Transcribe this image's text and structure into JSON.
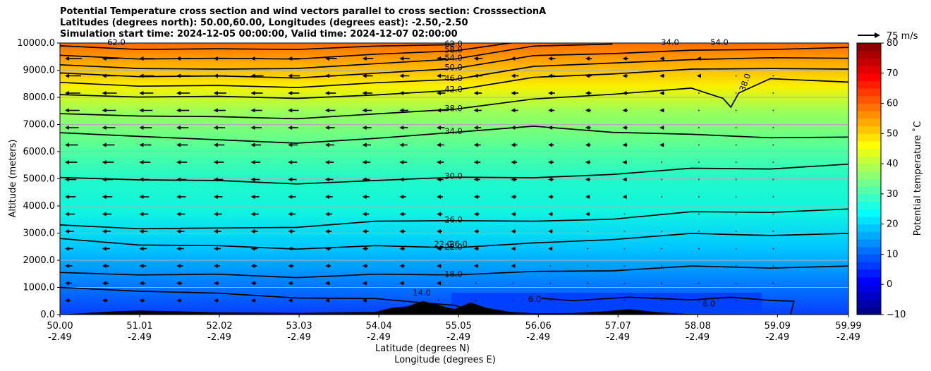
{
  "figure": {
    "title_lines": [
      "Potential Temperature cross section and wind vectors parallel to cross section: CrosssectionA",
      "Latitudes (degrees north): 50.00,60.00, Longitudes (degrees east): -2.50,-2.50",
      "Simulation start time: 2024-12-05 00:00:00, Valid time: 2024-12-07 02:00:00"
    ]
  },
  "chart_data": {
    "type": "contourf",
    "xlabel_lines": [
      "Latitude (degrees N)",
      "Longitude (degrees E)"
    ],
    "ylabel": "Altitude (meters)",
    "ylim": [
      0,
      10000
    ],
    "xlim": [
      50.0,
      59.99
    ],
    "grid": "horizontal",
    "y_ticks": [
      {
        "value": 0,
        "label": "0.0"
      },
      {
        "value": 1000,
        "label": "1000.0"
      },
      {
        "value": 2000,
        "label": "2000.0"
      },
      {
        "value": 3000,
        "label": "3000.0"
      },
      {
        "value": 4000,
        "label": "4000.0"
      },
      {
        "value": 5000,
        "label": "5000.0"
      },
      {
        "value": 6000,
        "label": "6000.0"
      },
      {
        "value": 7000,
        "label": "7000.0"
      },
      {
        "value": 8000,
        "label": "8000.0"
      },
      {
        "value": 9000,
        "label": "9000.0"
      },
      {
        "value": 10000,
        "label": "10000.0"
      }
    ],
    "x_ticks": [
      {
        "value": 50.0,
        "lat": "50.00",
        "lon": "-2.49"
      },
      {
        "value": 51.01,
        "lat": "51.01",
        "lon": "-2.49"
      },
      {
        "value": 52.02,
        "lat": "52.02",
        "lon": "-2.49"
      },
      {
        "value": 53.03,
        "lat": "53.03",
        "lon": "-2.49"
      },
      {
        "value": 54.04,
        "lat": "54.04",
        "lon": "-2.49"
      },
      {
        "value": 55.05,
        "lat": "55.05",
        "lon": "-2.49"
      },
      {
        "value": 56.06,
        "lat": "56.06",
        "lon": "-2.49"
      },
      {
        "value": 57.07,
        "lat": "57.07",
        "lon": "-2.49"
      },
      {
        "value": 58.08,
        "lat": "58.08",
        "lon": "-2.49"
      },
      {
        "value": 59.09,
        "lat": "59.09",
        "lon": "-2.49"
      },
      {
        "value": 59.99,
        "lat": "59.99",
        "lon": "-2.49"
      }
    ],
    "colorbar": {
      "label": "Potential temperature $^\\circ$C",
      "label_text": "Potential temperature ˚C",
      "range": [
        -10,
        80
      ],
      "ticks": [
        "80",
        "70",
        "60",
        "50",
        "40",
        "30",
        "20",
        "10",
        "0",
        "−10"
      ],
      "tick_values": [
        80,
        70,
        60,
        50,
        40,
        30,
        20,
        10,
        0,
        -10
      ],
      "colormap": "jet"
    },
    "wind_key": {
      "label": "75 m/s"
    },
    "contour_lines": [
      {
        "level": 6,
        "label": "6.0",
        "points": [
          [
            56.1,
            600
          ],
          [
            56.5,
            550
          ],
          [
            57.2,
            600
          ],
          [
            58.0,
            580
          ],
          [
            58.5,
            600
          ],
          [
            59.0,
            560
          ],
          [
            59.3,
            450
          ],
          [
            59.25,
            0
          ]
        ]
      },
      {
        "level": 14,
        "label": "14.0",
        "points": [
          [
            50.0,
            1000
          ],
          [
            51.0,
            900
          ],
          [
            52.0,
            750
          ],
          [
            53.0,
            650
          ],
          [
            54.0,
            550
          ],
          [
            54.5,
            500
          ],
          [
            55.0,
            300
          ],
          [
            55.3,
            100
          ],
          [
            55.6,
            0
          ]
        ]
      },
      {
        "level": 18,
        "label": "18.0",
        "points": [
          [
            50.0,
            1550
          ],
          [
            51.0,
            1500
          ],
          [
            52.0,
            1450
          ],
          [
            53.0,
            1400
          ],
          [
            54.0,
            1450
          ],
          [
            55.0,
            1500
          ],
          [
            56.0,
            1550
          ],
          [
            57.0,
            1650
          ],
          [
            58.0,
            1750
          ],
          [
            59.0,
            1750
          ],
          [
            59.99,
            1750
          ]
        ]
      },
      {
        "level": 22,
        "label": "22.0",
        "points": [
          [
            50.0,
            2800
          ],
          [
            51.0,
            2600
          ],
          [
            52.0,
            2500
          ],
          [
            53.0,
            2450
          ],
          [
            54.0,
            2500
          ],
          [
            55.0,
            2500
          ],
          [
            56.0,
            2600
          ],
          [
            57.0,
            2800
          ],
          [
            58.0,
            2950
          ],
          [
            59.0,
            2950
          ],
          [
            59.99,
            2950
          ]
        ]
      },
      {
        "level": 26,
        "label": "26.0",
        "points": [
          [
            50.0,
            3300
          ],
          [
            51.0,
            3200
          ],
          [
            52.0,
            3150
          ],
          [
            53.0,
            3250
          ],
          [
            54.0,
            3400
          ],
          [
            55.0,
            3500
          ],
          [
            56.0,
            3400
          ],
          [
            57.0,
            3550
          ],
          [
            58.0,
            3750
          ],
          [
            59.0,
            3800
          ],
          [
            59.99,
            3850
          ]
        ]
      },
      {
        "level": 30,
        "label": "30.0",
        "points": [
          [
            50.0,
            5050
          ],
          [
            51.0,
            5000
          ],
          [
            52.0,
            4900
          ],
          [
            53.0,
            4850
          ],
          [
            54.0,
            4900
          ],
          [
            55.0,
            5100
          ],
          [
            56.0,
            5000
          ],
          [
            57.0,
            5200
          ],
          [
            58.0,
            5350
          ],
          [
            59.0,
            5400
          ],
          [
            59.99,
            5500
          ]
        ]
      },
      {
        "level": 34,
        "label": "34.0",
        "points": [
          [
            50.0,
            6700
          ],
          [
            51.0,
            6600
          ],
          [
            52.0,
            6400
          ],
          [
            53.0,
            6350
          ],
          [
            54.0,
            6450
          ],
          [
            55.0,
            6750
          ],
          [
            56.0,
            6900
          ],
          [
            57.0,
            6750
          ],
          [
            58.0,
            6600
          ],
          [
            59.0,
            6550
          ],
          [
            59.99,
            6500
          ]
        ]
      },
      {
        "level": 38,
        "label": "38.0",
        "points": [
          [
            50.0,
            7400
          ],
          [
            51.0,
            7350
          ],
          [
            52.0,
            7250
          ],
          [
            53.0,
            7250
          ],
          [
            54.0,
            7350
          ],
          [
            55.0,
            7600
          ],
          [
            56.0,
            7900
          ],
          [
            57.0,
            8150
          ],
          [
            58.0,
            8300
          ],
          [
            58.4,
            8000
          ],
          [
            58.5,
            7600
          ],
          [
            58.6,
            8200
          ],
          [
            59.0,
            8650
          ],
          [
            59.99,
            8600
          ]
        ]
      },
      {
        "level": 42,
        "label": "42.0",
        "points": [
          [
            50.0,
            8100
          ],
          [
            51.0,
            8050
          ],
          [
            52.0,
            8000
          ],
          [
            53.0,
            8000
          ],
          [
            54.0,
            8050
          ],
          [
            55.0,
            8300
          ],
          [
            56.0,
            8700
          ],
          [
            57.0,
            8900
          ],
          [
            58.0,
            9000
          ],
          [
            59.0,
            9100
          ],
          [
            59.99,
            9000
          ]
        ]
      },
      {
        "level": 46,
        "label": "46.0",
        "points": [
          [
            50.0,
            8550
          ],
          [
            51.0,
            8450
          ],
          [
            52.0,
            8400
          ],
          [
            53.0,
            8400
          ],
          [
            54.0,
            8500
          ],
          [
            55.0,
            8700
          ],
          [
            56.0,
            9100
          ],
          [
            57.0,
            9300
          ],
          [
            58.0,
            9350
          ],
          [
            59.0,
            9500
          ],
          [
            59.99,
            9400
          ]
        ]
      },
      {
        "level": 50,
        "label": "50.0",
        "points": [
          [
            50.0,
            8900
          ],
          [
            51.0,
            8800
          ],
          [
            52.0,
            8750
          ],
          [
            53.0,
            8750
          ],
          [
            54.0,
            8850
          ],
          [
            55.0,
            9100
          ],
          [
            56.0,
            9500
          ],
          [
            57.0,
            9650
          ],
          [
            58.0,
            9700
          ],
          [
            59.0,
            9800
          ],
          [
            59.99,
            9800
          ]
        ]
      },
      {
        "level": 54,
        "label": "54.0",
        "points": [
          [
            50.0,
            9200
          ],
          [
            51.0,
            9100
          ],
          [
            52.0,
            9000
          ],
          [
            53.0,
            9100
          ],
          [
            54.0,
            9200
          ],
          [
            55.0,
            9450
          ],
          [
            56.0,
            9850
          ],
          [
            57.0,
            10000
          ]
        ]
      },
      {
        "level": 58,
        "label": "58.0",
        "points": [
          [
            50.0,
            9550
          ],
          [
            51.0,
            9450
          ],
          [
            52.0,
            9400
          ],
          [
            53.0,
            9450
          ],
          [
            54.0,
            9550
          ],
          [
            55.0,
            9750
          ],
          [
            55.8,
            10000
          ]
        ]
      },
      {
        "level": 62,
        "label": "62.0",
        "points": [
          [
            50.0,
            9900
          ],
          [
            51.0,
            9800
          ],
          [
            52.0,
            9750
          ],
          [
            53.0,
            9800
          ],
          [
            54.0,
            9850
          ],
          [
            55.0,
            9980
          ]
        ]
      }
    ],
    "clabel_extra": [
      "62.0",
      "38.0",
      "34.0",
      "54.0",
      "22.0",
      "26.0",
      "6.0"
    ],
    "terrain": [
      [
        50.0,
        0
      ],
      [
        50.7,
        120
      ],
      [
        51.0,
        150
      ],
      [
        51.5,
        120
      ],
      [
        52.0,
        80
      ],
      [
        53.0,
        60
      ],
      [
        54.0,
        100
      ],
      [
        54.2,
        250
      ],
      [
        54.4,
        300
      ],
      [
        54.6,
        500
      ],
      [
        54.8,
        350
      ],
      [
        55.0,
        200
      ],
      [
        55.2,
        450
      ],
      [
        55.4,
        250
      ],
      [
        55.7,
        100
      ],
      [
        56.0,
        50
      ],
      [
        56.5,
        60
      ],
      [
        56.9,
        120
      ],
      [
        57.2,
        200
      ],
      [
        57.6,
        80
      ],
      [
        58.0,
        20
      ],
      [
        59.99,
        0
      ]
    ]
  }
}
